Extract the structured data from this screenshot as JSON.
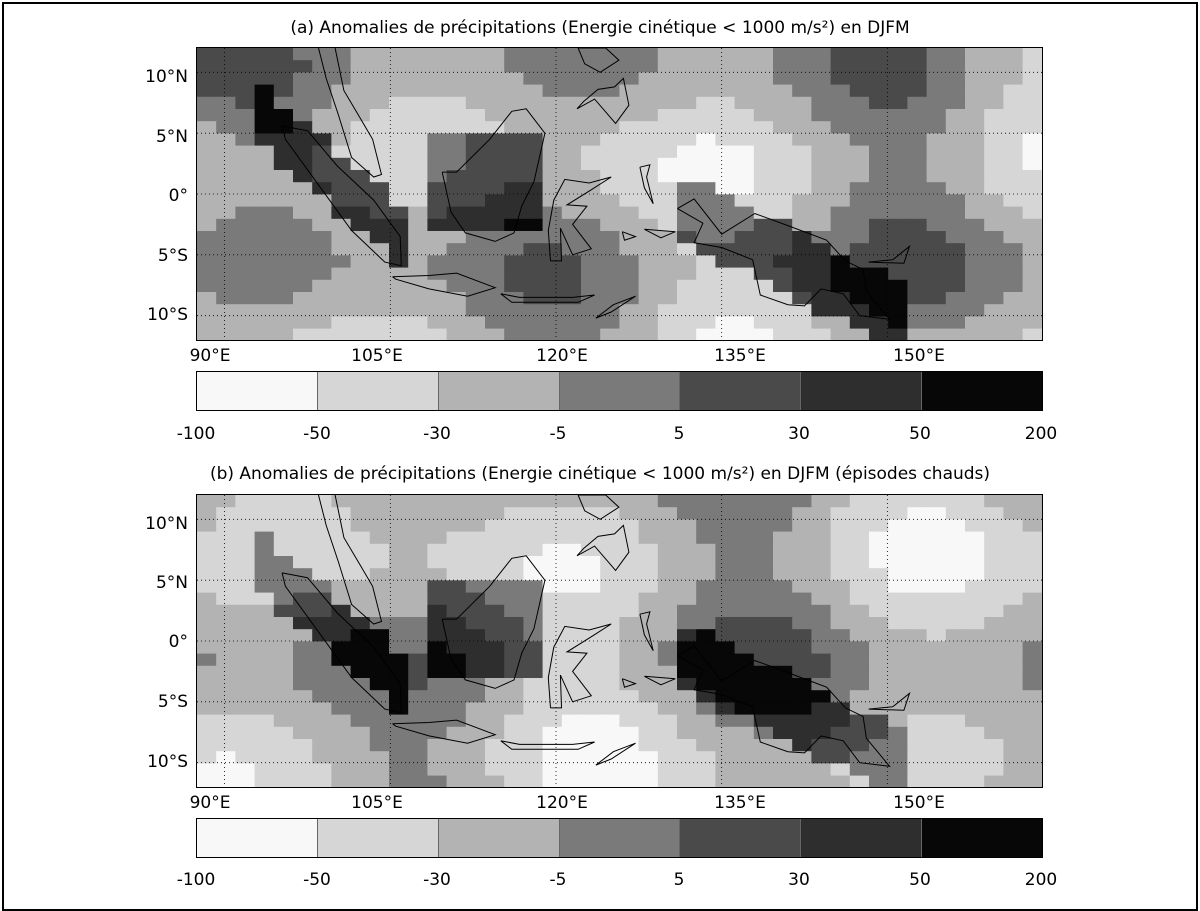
{
  "panels": [
    {
      "id": "a",
      "title": "(a) Anomalies de précipitations (Energie cinétique < 1000 m/s²) en DJFM",
      "lat_labels": [
        "10°N",
        "5°N",
        "0°",
        "5°S",
        "10°S"
      ],
      "lon_labels": [
        "90°E",
        "105°E",
        "120°E",
        "135°E",
        "150°E"
      ]
    },
    {
      "id": "b",
      "title": "(b) Anomalies de précipitations (Energie cinétique < 1000 m/s²) en DJFM (épisodes chauds)",
      "lat_labels": [
        "10°N",
        "5°N",
        "0°",
        "5°S",
        "10°S"
      ],
      "lon_labels": [
        "90°E",
        "105°E",
        "120°E",
        "135°E",
        "150°E"
      ]
    }
  ],
  "colorbar": {
    "ticks": [
      "-100",
      "-50",
      "-30",
      "-5",
      "5",
      "30",
      "50",
      "200"
    ],
    "colors": [
      "#f8f8f8",
      "#d6d6d6",
      "#b3b3b3",
      "#7a7a7a",
      "#4a4a4a",
      "#2e2e2e",
      "#070707"
    ]
  }
}
